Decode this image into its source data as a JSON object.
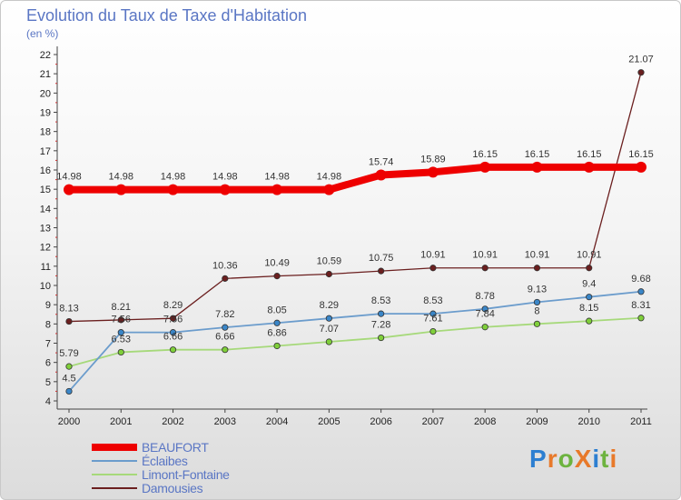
{
  "header": {
    "title": "Evolution du Taux de Taxe d'Habitation",
    "subtitle": "(en %)"
  },
  "logo": {
    "text": "ProXiti",
    "letters": [
      "P",
      "r",
      "o",
      "X",
      "i",
      "t",
      "i"
    ],
    "colors": [
      "#2d7fd1",
      "#e8792a",
      "#6db33f",
      "#e8792a",
      "#2d7fd1",
      "#6db33f",
      "#e8792a"
    ]
  },
  "chart_data": {
    "type": "line",
    "x": [
      "2000",
      "2001",
      "2002",
      "2003",
      "2004",
      "2005",
      "2006",
      "2007",
      "2008",
      "2009",
      "2010",
      "2011"
    ],
    "ylim": [
      4,
      22
    ],
    "yticks": [
      4,
      5,
      6,
      7,
      8,
      9,
      10,
      11,
      12,
      13,
      14,
      15,
      16,
      17,
      18,
      19,
      20,
      21,
      22
    ],
    "grid": false,
    "legend_position": "bottom-left",
    "series": [
      {
        "name": "Damousies",
        "color": "#6b1f1f",
        "dot": "#6b1f1f",
        "width": 1.3,
        "values": [
          8.13,
          8.21,
          8.29,
          10.36,
          10.49,
          10.59,
          10.75,
          10.91,
          10.91,
          10.91,
          10.91,
          21.07
        ],
        "labels": [
          "8.13",
          "8.21",
          "8.29",
          "10.36",
          "10.49",
          "10.59",
          "10.75",
          "10.91",
          "10.91",
          "10.91",
          "10.91",
          "21.07"
        ]
      },
      {
        "name": "Limont-Fontaine",
        "color": "#a6d97a",
        "dot": "#7fcf3a",
        "width": 1.8,
        "values": [
          5.79,
          6.53,
          6.66,
          6.66,
          6.86,
          7.07,
          7.28,
          7.61,
          7.84,
          8,
          8.15,
          8.31
        ],
        "labels": [
          "5.79",
          "6.53",
          "6.66",
          "6.66",
          "6.86",
          "7.07",
          "7.28",
          "7.61",
          "7.84",
          "8",
          "8.15",
          "8.31"
        ]
      },
      {
        "name": "Éclaibes",
        "color": "#6b9ccc",
        "dot": "#3a86c8",
        "width": 1.8,
        "values": [
          4.5,
          7.56,
          7.56,
          7.82,
          8.05,
          8.29,
          8.53,
          8.53,
          8.78,
          9.13,
          9.4,
          9.68
        ],
        "labels": [
          "4.5",
          "7.56",
          "7.56",
          "7.82",
          "8.05",
          "8.29",
          "8.53",
          "8.53",
          "8.78",
          "9.13",
          "9.4",
          "9.68"
        ]
      },
      {
        "name": "BEAUFORT",
        "color": "#ee0000",
        "dot": "#ee0000",
        "width": 8,
        "values": [
          14.98,
          14.98,
          14.98,
          14.98,
          14.98,
          14.98,
          15.74,
          15.89,
          16.15,
          16.15,
          16.15,
          16.15
        ],
        "labels": [
          "14.98",
          "14.98",
          "14.98",
          "14.98",
          "14.98",
          "14.98",
          "15.74",
          "15.89",
          "16.15",
          "16.15",
          "16.15",
          "16.15"
        ]
      }
    ],
    "legend": [
      "BEAUFORT",
      "Éclaibes",
      "Limont-Fontaine",
      "Damousies"
    ]
  }
}
